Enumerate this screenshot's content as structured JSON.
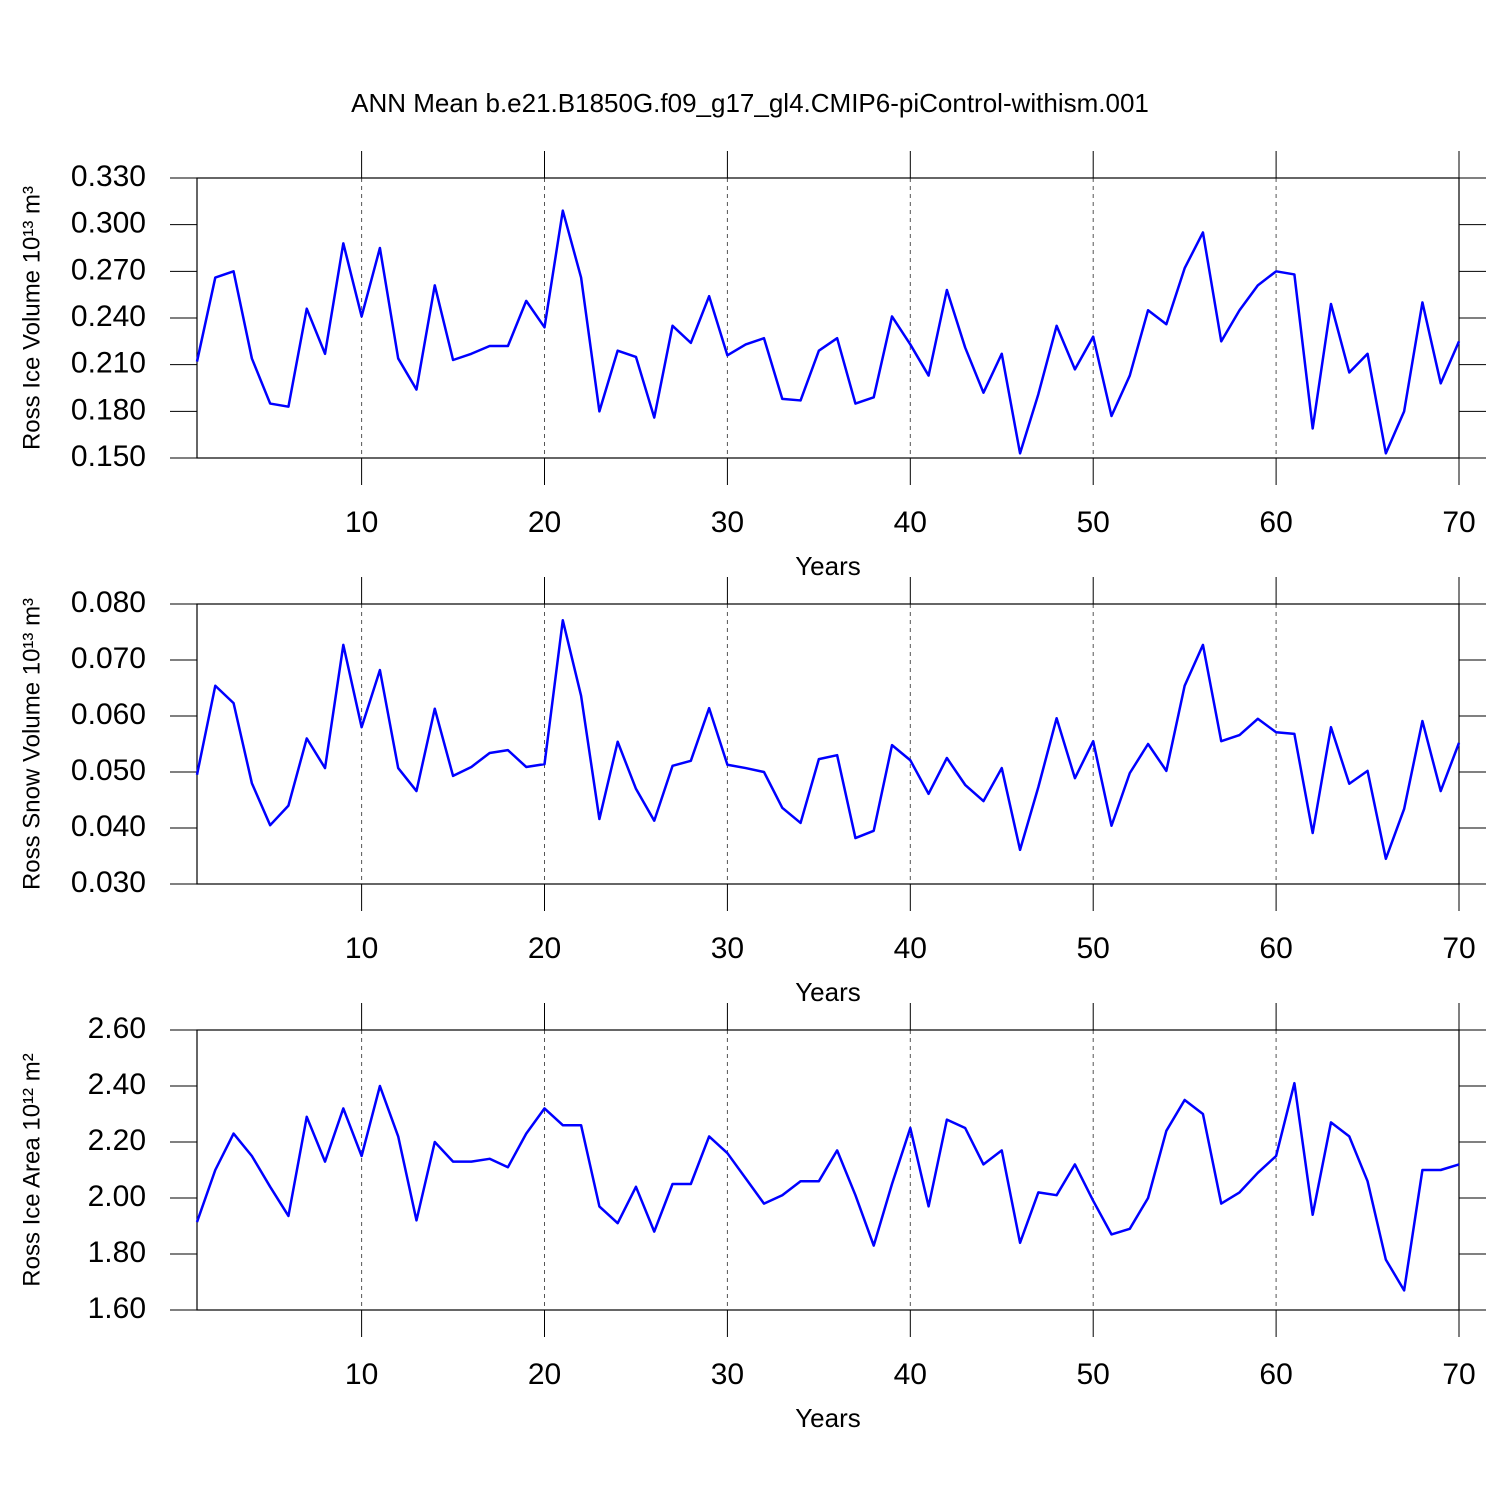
{
  "title": "ANN Mean b.e21.B1850G.f09_g17_gl4.CMIP6-piControl-withism.001",
  "chart_data": [
    {
      "type": "line",
      "x_label": "Years",
      "y_label": "Ross Ice Volume 10¹³ m³",
      "grid": true,
      "xlim": [
        1,
        70
      ],
      "xticks": [
        10,
        20,
        30,
        40,
        50,
        60,
        70
      ],
      "ylim": [
        0.15,
        0.33
      ],
      "yticks": [
        {
          "value": 0.15,
          "label": "0.150"
        },
        {
          "value": 0.18,
          "label": "0.180"
        },
        {
          "value": 0.21,
          "label": "0.210"
        },
        {
          "value": 0.24,
          "label": "0.240"
        },
        {
          "value": 0.27,
          "label": "0.270"
        },
        {
          "value": 0.3,
          "label": "0.300"
        },
        {
          "value": 0.33,
          "label": "0.330"
        }
      ],
      "x": [
        1,
        2,
        3,
        4,
        5,
        6,
        7,
        8,
        9,
        10,
        11,
        12,
        13,
        14,
        15,
        16,
        17,
        18,
        19,
        20,
        21,
        22,
        23,
        24,
        25,
        26,
        27,
        28,
        29,
        30,
        31,
        32,
        33,
        34,
        35,
        36,
        37,
        38,
        39,
        40,
        41,
        42,
        43,
        44,
        45,
        46,
        47,
        48,
        49,
        50,
        51,
        52,
        53,
        54,
        55,
        56,
        57,
        58,
        59,
        60,
        61,
        62,
        63,
        64,
        65,
        66,
        67,
        68,
        69,
        70
      ],
      "series": [
        {
          "color": "#0000ff",
          "values": [
            0.212,
            0.266,
            0.27,
            0.214,
            0.185,
            0.183,
            0.246,
            0.217,
            0.288,
            0.241,
            0.285,
            0.214,
            0.194,
            0.261,
            0.213,
            0.217,
            0.222,
            0.222,
            0.251,
            0.234,
            0.309,
            0.266,
            0.18,
            0.219,
            0.215,
            0.176,
            0.235,
            0.224,
            0.254,
            0.216,
            0.223,
            0.227,
            0.188,
            0.187,
            0.219,
            0.227,
            0.185,
            0.189,
            0.241,
            0.223,
            0.203,
            0.258,
            0.221,
            0.192,
            0.217,
            0.153,
            0.191,
            0.235,
            0.207,
            0.228,
            0.177,
            0.203,
            0.245,
            0.236,
            0.272,
            0.295,
            0.225,
            0.245,
            0.261,
            0.27,
            0.268,
            0.169,
            0.249,
            0.205,
            0.217,
            0.153,
            0.18,
            0.25,
            0.198,
            0.225
          ]
        }
      ]
    },
    {
      "type": "line",
      "x_label": "Years",
      "y_label": "Ross Snow Volume 10¹³ m³",
      "grid": true,
      "xlim": [
        1,
        70
      ],
      "xticks": [
        10,
        20,
        30,
        40,
        50,
        60,
        70
      ],
      "ylim": [
        0.03,
        0.08
      ],
      "yticks": [
        {
          "value": 0.03,
          "label": "0.030"
        },
        {
          "value": 0.04,
          "label": "0.040"
        },
        {
          "value": 0.05,
          "label": "0.050"
        },
        {
          "value": 0.06,
          "label": "0.060"
        },
        {
          "value": 0.07,
          "label": "0.070"
        },
        {
          "value": 0.08,
          "label": "0.080"
        }
      ],
      "x": [
        1,
        2,
        3,
        4,
        5,
        6,
        7,
        8,
        9,
        10,
        11,
        12,
        13,
        14,
        15,
        16,
        17,
        18,
        19,
        20,
        21,
        22,
        23,
        24,
        25,
        26,
        27,
        28,
        29,
        30,
        31,
        32,
        33,
        34,
        35,
        36,
        37,
        38,
        39,
        40,
        41,
        42,
        43,
        44,
        45,
        46,
        47,
        48,
        49,
        50,
        51,
        52,
        53,
        54,
        55,
        56,
        57,
        58,
        59,
        60,
        61,
        62,
        63,
        64,
        65,
        66,
        67,
        68,
        69,
        70
      ],
      "series": [
        {
          "color": "#0000ff",
          "values": [
            0.0495,
            0.0654,
            0.0623,
            0.048,
            0.0405,
            0.044,
            0.056,
            0.0507,
            0.0727,
            0.058,
            0.0682,
            0.0507,
            0.0466,
            0.0613,
            0.0493,
            0.0509,
            0.0534,
            0.0539,
            0.0509,
            0.0514,
            0.0771,
            0.0636,
            0.0416,
            0.0554,
            0.047,
            0.0413,
            0.0511,
            0.052,
            0.0614,
            0.0513,
            0.0507,
            0.05,
            0.0436,
            0.0409,
            0.0523,
            0.053,
            0.0382,
            0.0395,
            0.0548,
            0.0521,
            0.0461,
            0.0525,
            0.0477,
            0.0448,
            0.0507,
            0.0361,
            0.0473,
            0.0596,
            0.0489,
            0.0555,
            0.0404,
            0.0498,
            0.055,
            0.0502,
            0.0654,
            0.0727,
            0.0555,
            0.0566,
            0.0595,
            0.0571,
            0.0568,
            0.0391,
            0.058,
            0.0479,
            0.0502,
            0.0345,
            0.0434,
            0.0591,
            0.0466,
            0.0552
          ]
        }
      ]
    },
    {
      "type": "line",
      "x_label": "Years",
      "y_label": "Ross Ice Area 10¹² m²",
      "grid": true,
      "xlim": [
        1,
        70
      ],
      "xticks": [
        10,
        20,
        30,
        40,
        50,
        60,
        70
      ],
      "ylim": [
        1.6,
        2.6
      ],
      "yticks": [
        {
          "value": 1.6,
          "label": "1.60"
        },
        {
          "value": 1.8,
          "label": "1.80"
        },
        {
          "value": 2.0,
          "label": "2.00"
        },
        {
          "value": 2.2,
          "label": "2.20"
        },
        {
          "value": 2.4,
          "label": "2.40"
        },
        {
          "value": 2.6,
          "label": "2.60"
        }
      ],
      "x": [
        1,
        2,
        3,
        4,
        5,
        6,
        7,
        8,
        9,
        10,
        11,
        12,
        13,
        14,
        15,
        16,
        17,
        18,
        19,
        20,
        21,
        22,
        23,
        24,
        25,
        26,
        27,
        28,
        29,
        30,
        31,
        32,
        33,
        34,
        35,
        36,
        37,
        38,
        39,
        40,
        41,
        42,
        43,
        44,
        45,
        46,
        47,
        48,
        49,
        50,
        51,
        52,
        53,
        54,
        55,
        56,
        57,
        58,
        59,
        60,
        61,
        62,
        63,
        64,
        65,
        66,
        67,
        68,
        69,
        70
      ],
      "series": [
        {
          "color": "#0000ff",
          "values": [
            1.914,
            2.1,
            2.23,
            2.15,
            2.04,
            1.936,
            2.29,
            2.13,
            2.32,
            2.15,
            2.4,
            2.22,
            1.92,
            2.2,
            2.13,
            2.13,
            2.14,
            2.11,
            2.23,
            2.32,
            2.26,
            2.26,
            1.97,
            1.91,
            2.04,
            1.88,
            2.05,
            2.05,
            2.22,
            2.16,
            2.07,
            1.98,
            2.01,
            2.06,
            2.06,
            2.17,
            2.01,
            1.83,
            2.05,
            2.25,
            1.97,
            2.28,
            2.25,
            2.12,
            2.17,
            1.84,
            2.02,
            2.01,
            2.12,
            1.99,
            1.87,
            1.89,
            2.0,
            2.24,
            2.35,
            2.3,
            1.98,
            2.02,
            2.09,
            2.15,
            2.41,
            1.94,
            2.27,
            2.22,
            2.06,
            1.78,
            1.67,
            2.1,
            2.1,
            2.12
          ]
        }
      ]
    }
  ]
}
